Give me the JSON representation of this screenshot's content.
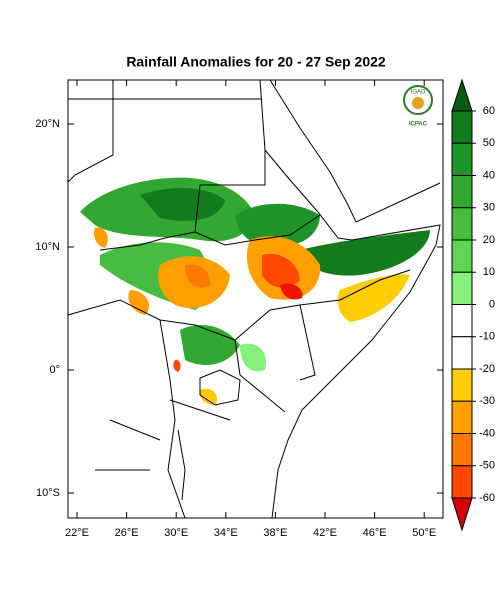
{
  "title": "Rainfall Anomalies for 20 - 27 Sep 2022",
  "logo": {
    "top": "IGAD",
    "bottom": "ICPAC"
  },
  "map": {
    "lat_labels": [
      "20°N",
      "10°N",
      "0°",
      "10°S"
    ],
    "lon_labels": [
      "22°E",
      "26°E",
      "30°E",
      "34°E",
      "38°E",
      "42°E",
      "46°E",
      "50°E"
    ]
  },
  "colorbar": {
    "ticks": [
      60,
      50,
      40,
      30,
      20,
      10,
      0,
      -10,
      -20,
      -30,
      -40,
      -50,
      -60
    ],
    "colors": [
      "#0a5a14",
      "#137a1e",
      "#1f9428",
      "#32a832",
      "#47bd40",
      "#5fd653",
      "#85f07a",
      "#ffffff",
      "#ffffff",
      "#ffcc00",
      "#ffa000",
      "#ff7800",
      "#ff4800",
      "#f01400",
      "#d70000"
    ]
  }
}
